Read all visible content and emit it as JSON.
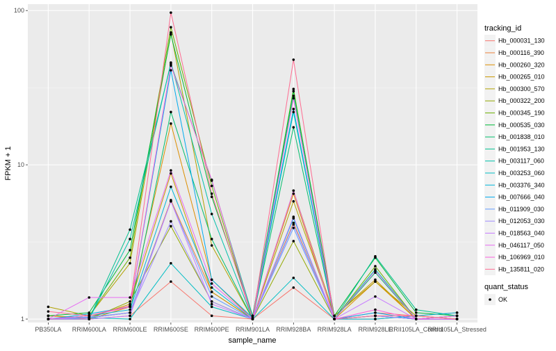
{
  "chart_data": {
    "type": "line",
    "xlabel": "sample_name",
    "ylabel": "FPKM + 1",
    "y_scale": "log10",
    "ylim": [
      0.95,
      110
    ],
    "y_ticks": [
      1,
      10,
      100
    ],
    "y_tick_labels": [
      "1",
      "10",
      "100"
    ],
    "grid": true,
    "legend_position": "right",
    "categories": [
      "PB350LA",
      "RRIM600LA",
      "RRIM600LE",
      "RRIM600SE",
      "RRIM600PE",
      "RRIM901LA",
      "RRIM928BA",
      "RRIM928LA",
      "RRIM928LE",
      "RRII105LA_Control",
      "RRII105LA_Stressed"
    ],
    "legend_color_title": "tracking_id",
    "legend_shape_title": "quant_status",
    "shape_legend_label": "OK",
    "series": [
      {
        "name": "Hb_000031_130",
        "color": "#F8766D",
        "values": [
          1.05,
          1.0,
          1.05,
          1.75,
          1.05,
          1.0,
          1.6,
          1.0,
          1.1,
          1.05,
          1.0
        ]
      },
      {
        "name": "Hb_000116_390",
        "color": "#EC823C",
        "values": [
          1.0,
          1.02,
          1.1,
          5.9,
          1.5,
          1.0,
          4.2,
          1.0,
          1.0,
          1.05,
          1.1
        ]
      },
      {
        "name": "Hb_000260_320",
        "color": "#DC8E00",
        "values": [
          1.0,
          1.0,
          1.2,
          18.5,
          1.8,
          1.0,
          6.5,
          1.0,
          1.75,
          1.0,
          1.0
        ]
      },
      {
        "name": "Hb_000265_010",
        "color": "#C99800",
        "values": [
          1.05,
          1.02,
          1.25,
          8.8,
          1.5,
          1.0,
          6.8,
          1.05,
          1.8,
          1.0,
          1.05
        ]
      },
      {
        "name": "Hb_000300_570",
        "color": "#B0A100",
        "values": [
          1.2,
          1.05,
          2.3,
          72.0,
          3.0,
          1.0,
          5.8,
          1.05,
          1.75,
          1.05,
          1.0
        ]
      },
      {
        "name": "Hb_000322_200",
        "color": "#92A900",
        "values": [
          1.0,
          1.0,
          1.3,
          4.0,
          1.3,
          1.0,
          3.2,
          1.0,
          1.05,
          1.0,
          1.0
        ]
      },
      {
        "name": "Hb_000345_190",
        "color": "#6BB100",
        "values": [
          1.0,
          1.05,
          2.5,
          78.0,
          7.3,
          1.0,
          31.0,
          1.0,
          2.2,
          1.0,
          1.05
        ]
      },
      {
        "name": "Hb_000535_030",
        "color": "#00BA38",
        "values": [
          1.05,
          1.1,
          2.8,
          70.0,
          6.2,
          1.05,
          30.0,
          1.05,
          2.5,
          1.1,
          1.05
        ]
      },
      {
        "name": "Hb_001838_010",
        "color": "#00BE6C",
        "values": [
          1.0,
          1.02,
          1.1,
          22.0,
          3.3,
          1.0,
          17.5,
          1.0,
          2.0,
          1.0,
          1.0
        ]
      },
      {
        "name": "Hb_001953_130",
        "color": "#00C08F",
        "values": [
          1.0,
          1.0,
          3.8,
          45.0,
          7.9,
          1.05,
          28.0,
          1.0,
          2.55,
          1.15,
          1.05
        ]
      },
      {
        "name": "Hb_003117_060",
        "color": "#00C1AB",
        "values": [
          1.0,
          1.0,
          3.3,
          46.0,
          4.8,
          1.0,
          22.0,
          1.0,
          2.1,
          1.0,
          1.0
        ]
      },
      {
        "name": "Hb_003253_060",
        "color": "#00BDC4",
        "values": [
          1.0,
          1.02,
          1.0,
          2.3,
          1.2,
          1.0,
          1.85,
          1.0,
          1.05,
          1.0,
          1.0
        ]
      },
      {
        "name": "Hb_003376_340",
        "color": "#00B6DA",
        "values": [
          1.0,
          1.05,
          1.15,
          7.2,
          1.6,
          1.0,
          4.5,
          1.0,
          1.0,
          1.05,
          1.1
        ]
      },
      {
        "name": "Hb_007666_040",
        "color": "#00ABEE",
        "values": [
          1.0,
          1.08,
          1.2,
          41.0,
          1.8,
          1.02,
          23.0,
          1.0,
          1.1,
          1.0,
          1.05
        ]
      },
      {
        "name": "Hb_011909_030",
        "color": "#619CFF",
        "values": [
          1.0,
          1.03,
          1.1,
          5.8,
          1.4,
          1.0,
          3.9,
          1.0,
          1.05,
          1.0,
          1.0
        ]
      },
      {
        "name": "Hb_012053_030",
        "color": "#9F8CFF",
        "values": [
          1.0,
          1.02,
          1.1,
          4.3,
          1.3,
          1.0,
          4.1,
          1.0,
          1.05,
          1.0,
          1.0
        ]
      },
      {
        "name": "Hb_018563_040",
        "color": "#C77CFF",
        "values": [
          1.0,
          1.0,
          1.05,
          5.8,
          1.25,
          1.0,
          4.6,
          1.0,
          1.4,
          1.0,
          1.0
        ]
      },
      {
        "name": "Hb_046117_050",
        "color": "#E76BF3",
        "values": [
          1.0,
          1.38,
          1.38,
          9.2,
          1.7,
          1.0,
          6.8,
          1.0,
          2.05,
          1.0,
          1.0
        ]
      },
      {
        "name": "Hb_106969_010",
        "color": "#FA62DB",
        "values": [
          1.0,
          1.05,
          1.2,
          44.0,
          8.0,
          1.0,
          27.0,
          1.0,
          1.15,
          1.0,
          1.05
        ]
      },
      {
        "name": "Hb_135811_020",
        "color": "#FF6C91",
        "values": [
          1.12,
          1.05,
          1.22,
          97.0,
          6.5,
          1.0,
          48.0,
          1.0,
          1.05,
          1.05,
          1.0
        ]
      }
    ]
  }
}
